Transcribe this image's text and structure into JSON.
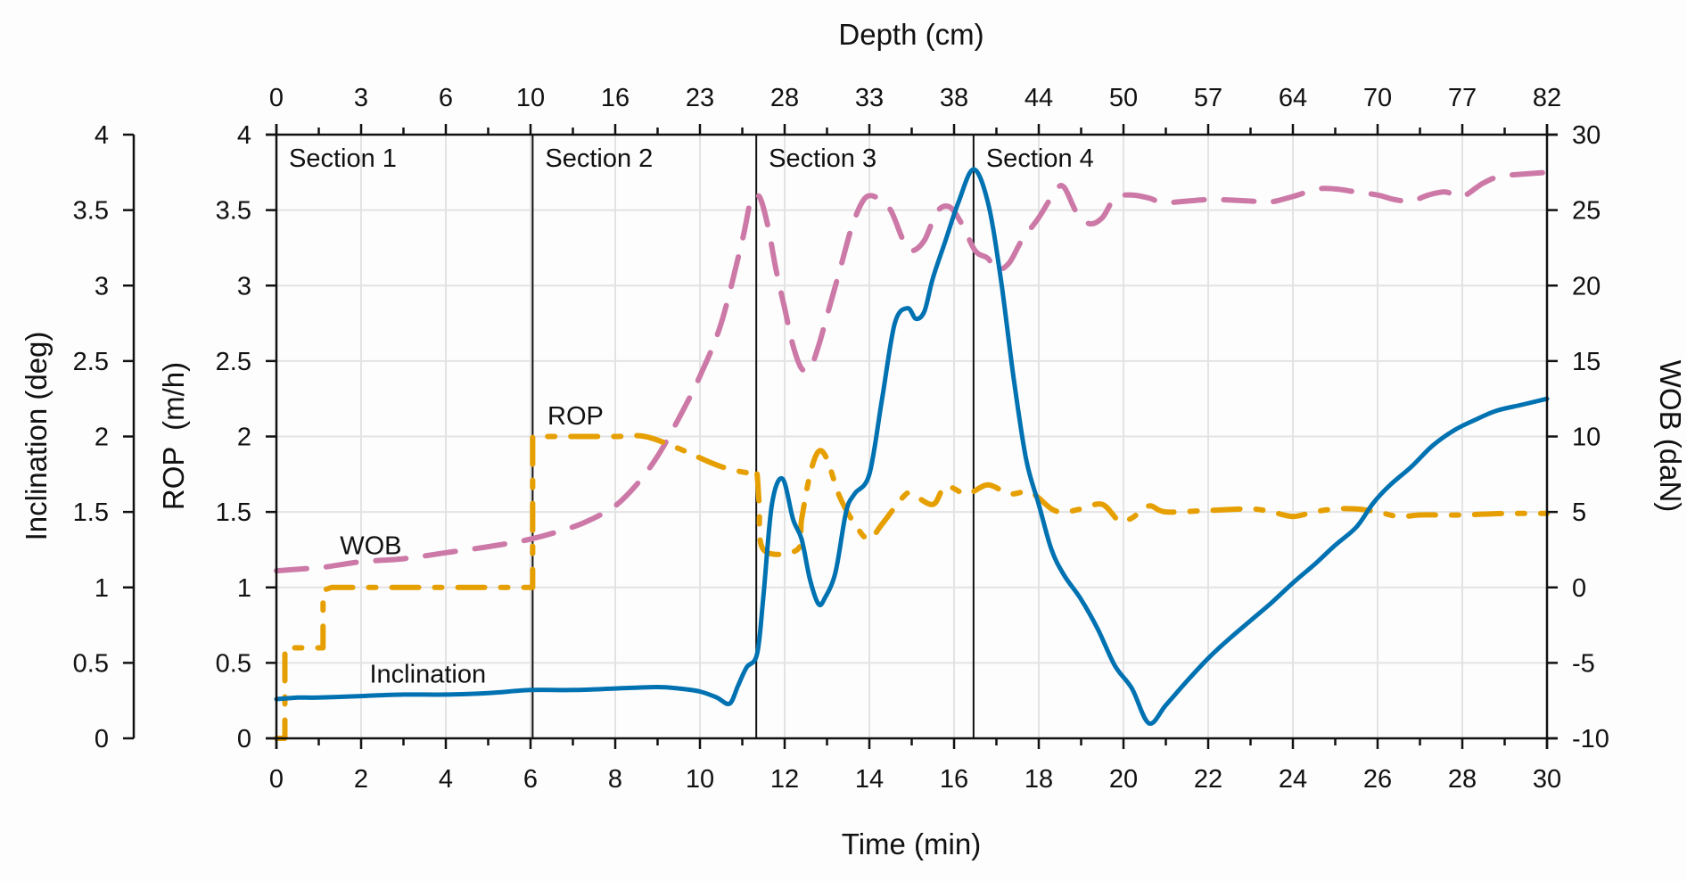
{
  "chart_data": {
    "type": "line",
    "title": "",
    "xlabel": "Time (min)",
    "x2label": "Depth (cm)",
    "ylabel_left_outer": "Inclination (deg)",
    "ylabel_left_inner": "ROP  (m/h)",
    "ylabel_right": "WOB (daN)",
    "xlim": [
      0,
      30
    ],
    "ylim_inclination": [
      0,
      4
    ],
    "ylim_rop": [
      0,
      4
    ],
    "ylim_wob": [
      -10,
      30
    ],
    "grid": true,
    "x_ticks": [
      0,
      2,
      4,
      6,
      8,
      10,
      12,
      14,
      16,
      18,
      20,
      22,
      24,
      26,
      28,
      30
    ],
    "x_tick_labels": [
      "0",
      "2",
      "4",
      "6",
      "8",
      "10",
      "12",
      "14",
      "16",
      "18",
      "20",
      "22",
      "24",
      "26",
      "28",
      "30"
    ],
    "x2_tick_positions_min": [
      0,
      2,
      4,
      6,
      8,
      10,
      12,
      14,
      16,
      18,
      20,
      22,
      24,
      26,
      28,
      30
    ],
    "x2_tick_labels": [
      "0",
      "3",
      "6",
      "10",
      "16",
      "23",
      "28",
      "33",
      "38",
      "44",
      "50",
      "57",
      "64",
      "70",
      "77",
      "82"
    ],
    "y_ticks": [
      0,
      0.5,
      1,
      1.5,
      2,
      2.5,
      3,
      3.5,
      4
    ],
    "y_tick_labels": [
      "0",
      "0.5",
      "1",
      "1.5",
      "2",
      "2.5",
      "3",
      "3.5",
      "4"
    ],
    "wob_ticks": [
      -10,
      -5,
      0,
      5,
      10,
      15,
      20,
      25,
      30
    ],
    "wob_tick_labels": [
      "-10",
      "-5",
      "0",
      "5",
      "10",
      "15",
      "20",
      "25",
      "30"
    ],
    "sections": [
      {
        "label": "Section 1",
        "start": 0
      },
      {
        "label": "Section 2",
        "start": 6.05
      },
      {
        "label": "Section 3",
        "start": 11.33
      },
      {
        "label": "Section 4",
        "start": 16.46
      }
    ],
    "annotations": [
      {
        "text": "WOB",
        "x": 1.5,
        "y": 1.22
      },
      {
        "text": "ROP",
        "x": 6.4,
        "y": 2.08
      },
      {
        "text": "Inclination",
        "x": 2.2,
        "y": 0.37
      }
    ],
    "series": [
      {
        "name": "Inclination",
        "axis": "inclination",
        "color": "#0072B2",
        "style": "solid",
        "x": [
          0,
          0.5,
          1,
          2,
          3,
          4,
          5,
          6,
          7,
          8,
          9,
          9.5,
          10,
          10.4,
          10.7,
          10.9,
          11.1,
          11.35,
          11.5,
          11.7,
          11.95,
          12.2,
          12.4,
          12.6,
          12.8,
          12.95,
          13.2,
          13.45,
          13.65,
          14.0,
          14.3,
          14.6,
          14.9,
          15.1,
          15.3,
          15.5,
          15.8,
          16.1,
          16.46,
          16.8,
          17.1,
          17.4,
          17.7,
          18.0,
          18.3,
          18.6,
          19.0,
          19.4,
          19.8,
          20.2,
          20.6,
          21.0,
          21.5,
          22.0,
          22.5,
          23.0,
          23.5,
          24.0,
          24.5,
          25.0,
          25.5,
          25.9,
          26.3,
          26.8,
          27.3,
          27.8,
          28.3,
          28.8,
          29.4,
          30
        ],
        "values": [
          0.26,
          0.27,
          0.27,
          0.28,
          0.29,
          0.29,
          0.3,
          0.32,
          0.32,
          0.33,
          0.34,
          0.33,
          0.31,
          0.27,
          0.23,
          0.35,
          0.47,
          0.56,
          0.95,
          1.55,
          1.72,
          1.45,
          1.32,
          1.05,
          0.89,
          0.93,
          1.1,
          1.5,
          1.62,
          1.75,
          2.25,
          2.75,
          2.85,
          2.78,
          2.83,
          3.05,
          3.3,
          3.55,
          3.77,
          3.55,
          3.05,
          2.4,
          1.85,
          1.55,
          1.25,
          1.08,
          0.92,
          0.72,
          0.48,
          0.33,
          0.1,
          0.22,
          0.38,
          0.53,
          0.66,
          0.78,
          0.9,
          1.03,
          1.15,
          1.28,
          1.4,
          1.56,
          1.68,
          1.8,
          1.94,
          2.04,
          2.11,
          2.17,
          2.21,
          2.25
        ]
      },
      {
        "name": "ROP",
        "axis": "rop",
        "color": "#E69F00",
        "style": "dashdot",
        "x": [
          0,
          0.2,
          0.2,
          1.1,
          1.1,
          1.3,
          6.05,
          6.05,
          6.2,
          8.0,
          8.7,
          9.5,
          10.5,
          11.3,
          11.35,
          11.4,
          11.5,
          12.3,
          12.4,
          12.6,
          12.8,
          13.0,
          13.3,
          13.7,
          14.0,
          14.3,
          14.8,
          15.0,
          15.5,
          15.8,
          16.3,
          16.8,
          17.3,
          17.8,
          18.3,
          18.6,
          19.0,
          19.5,
          19.9,
          20.2,
          20.6,
          21.0,
          22.0,
          23.0,
          23.5,
          24.0,
          24.5,
          25.0,
          25.5,
          26.0,
          26.5,
          27.0,
          27.5,
          28.0,
          29.0,
          30
        ],
        "values": [
          0,
          0,
          0.6,
          0.6,
          0.98,
          1.0,
          1.0,
          2.0,
          2.0,
          2.0,
          2.0,
          1.92,
          1.8,
          1.75,
          1.75,
          1.55,
          1.25,
          1.25,
          1.45,
          1.75,
          1.9,
          1.85,
          1.6,
          1.4,
          1.32,
          1.42,
          1.6,
          1.62,
          1.55,
          1.67,
          1.62,
          1.68,
          1.62,
          1.63,
          1.52,
          1.5,
          1.52,
          1.55,
          1.44,
          1.46,
          1.54,
          1.5,
          1.51,
          1.52,
          1.5,
          1.47,
          1.5,
          1.52,
          1.52,
          1.5,
          1.47,
          1.48,
          1.48,
          1.48,
          1.49,
          1.49
        ]
      },
      {
        "name": "WOB",
        "axis": "wob",
        "color": "#CC79A7",
        "style": "dashed",
        "x": [
          0,
          1,
          2,
          3,
          4,
          5,
          6,
          7,
          7.5,
          8,
          8.5,
          9,
          9.5,
          10,
          10.5,
          11,
          11.2,
          11.4,
          11.6,
          11.8,
          12.0,
          12.2,
          12.4,
          12.6,
          12.8,
          13.0,
          13.3,
          13.6,
          13.9,
          14.2,
          14.5,
          14.8,
          15.0,
          15.3,
          15.6,
          15.9,
          16.2,
          16.5,
          16.8,
          17.0,
          17.3,
          17.6,
          18.0,
          18.4,
          18.6,
          18.9,
          19.2,
          19.5,
          19.8,
          20.2,
          20.6,
          21.0,
          22.0,
          23.0,
          23.3,
          23.6,
          24.0,
          24.6,
          25.0,
          25.5,
          26.0,
          26.4,
          26.8,
          27.2,
          27.6,
          28.0,
          28.5,
          29.0,
          30
        ],
        "values": [
          1.1,
          1.3,
          1.7,
          1.9,
          2.3,
          2.7,
          3.2,
          4.0,
          4.6,
          5.4,
          6.8,
          8.7,
          11.2,
          14.0,
          17.5,
          23.0,
          25.6,
          25.9,
          24.0,
          21.0,
          18.5,
          16.0,
          14.5,
          14.5,
          16.0,
          18.0,
          21.0,
          24.0,
          25.8,
          25.8,
          25.0,
          23.0,
          22.3,
          23.0,
          24.9,
          25.2,
          24.0,
          22.3,
          21.8,
          21.0,
          21.5,
          23.0,
          24.5,
          26.3,
          26.5,
          24.8,
          24.1,
          24.5,
          25.8,
          26.0,
          25.8,
          25.5,
          25.7,
          25.6,
          25.5,
          25.6,
          25.9,
          26.4,
          26.4,
          26.2,
          26.0,
          25.7,
          25.6,
          26.0,
          26.2,
          25.9,
          26.8,
          27.3,
          27.5
        ]
      }
    ]
  }
}
